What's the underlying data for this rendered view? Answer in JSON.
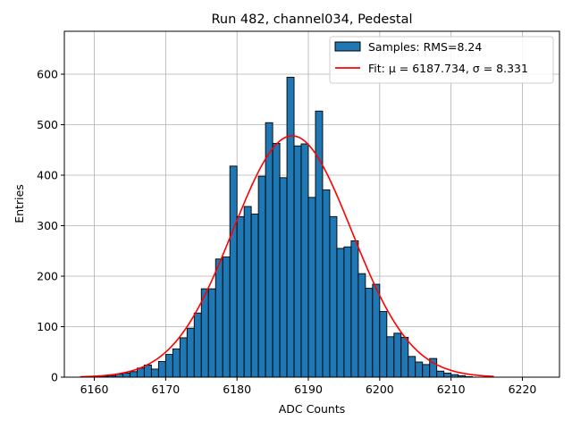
{
  "chart_data": {
    "type": "bar",
    "title": "Run 482, channel034, Pedestal",
    "xlabel": "ADC Counts",
    "ylabel": "Entries",
    "xlim": [
      6155.8,
      6225.2
    ],
    "ylim": [
      0,
      685
    ],
    "xticks": [
      6160,
      6170,
      6180,
      6190,
      6200,
      6210,
      6220
    ],
    "yticks": [
      0,
      100,
      200,
      300,
      400,
      500,
      600
    ],
    "grid": true,
    "legend_position": "top-right",
    "legend": [
      {
        "label": "Samples: RMS=8.24",
        "kind": "patch"
      },
      {
        "label": "Fit: μ = 6187.734, σ = 8.331",
        "kind": "line"
      }
    ],
    "histogram": {
      "name": "Samples: RMS=8.24",
      "color": "#1f77b4",
      "edge_color": "#000000",
      "bin_start": 6160,
      "bin_width": 1,
      "values": [
        1,
        2,
        3,
        6,
        8,
        11,
        18,
        24,
        16,
        31,
        45,
        56,
        78,
        97,
        127,
        175,
        175,
        234,
        238,
        418,
        318,
        338,
        323,
        398,
        504,
        463,
        395,
        594,
        458,
        462,
        356,
        527,
        371,
        318,
        255,
        258,
        270,
        205,
        176,
        184,
        130,
        80,
        87,
        79,
        41,
        30,
        25,
        37,
        12,
        8,
        5,
        3,
        1
      ]
    },
    "fit": {
      "name": "Fit",
      "color": "#ff0000",
      "mu": 6187.734,
      "sigma": 8.331,
      "amplitude": 478,
      "x_range": [
        6158,
        6216
      ]
    }
  }
}
